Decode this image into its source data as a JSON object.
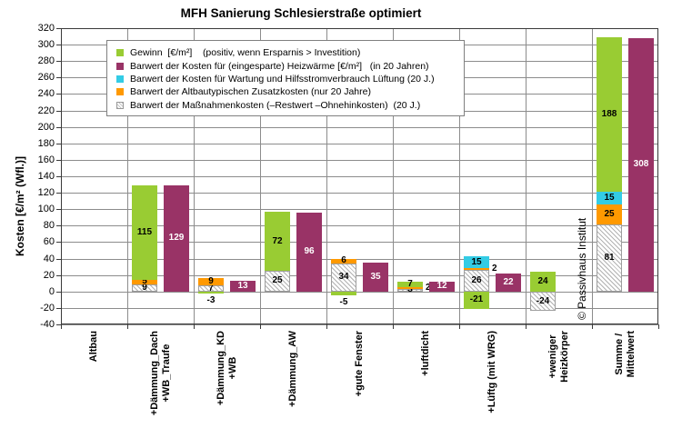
{
  "copyright": "© Passivhaus Institut",
  "colors": {
    "gewinn": "#99CC33",
    "heizwaerme": "#993366",
    "wartung": "#33CCE5",
    "zusatz": "#FF9900",
    "grid": "#8c8c8c",
    "axis": "#3a3a3a"
  },
  "legend": {
    "items": [
      {
        "key": "gewinn",
        "label": "Gewinn  [€/m²]    (positiv, wenn Ersparnis > Investition)"
      },
      {
        "key": "heizwaerme",
        "label": "Barwert der Kosten für (eingesparte) Heizwärme [€/m²]   (in 20 Jahren)"
      },
      {
        "key": "wartung",
        "label": "Barwert der Kosten für Wartung und Hilfsstromverbrauch Lüftung (20 J.)"
      },
      {
        "key": "zusatz",
        "label": "Barwert der Altbautypischen Zusatzkosten (nur 20 Jahre)"
      },
      {
        "key": "massnahmen",
        "label": "Barwert der Maßnahmenkosten (–Restwert –Ohnehinkosten)  (20 J.)"
      }
    ]
  },
  "chart_data": {
    "type": "bar",
    "title": "MFH Sanierung Schlesierstraße optimiert",
    "ylabel": "Kosten [€/m² (Wfl.)]",
    "ylim": [
      -40,
      320
    ],
    "ystep": 20,
    "grid": "on",
    "legend_position": "top-left inside plot",
    "categories": [
      "Altbau",
      "+Dämmung_Dach\n+WB_Traufe",
      "+Dämmung_KD\n+WB",
      "+Dämmung_AW",
      "+gute Fenster",
      "+luftdicht",
      "+Lüftg (mit WRG)",
      "+weniger\nHeizkörper",
      "Summe /\nMittelwert"
    ],
    "series": [
      {
        "name": "Gewinn [€/m²]",
        "key": "gewinn",
        "values": [
          null,
          115,
          -3,
          72,
          -5,
          7,
          -21,
          24,
          188
        ]
      },
      {
        "name": "Barwert der Kosten für (eingesparte) Heizwärme",
        "key": "heizwaerme",
        "values": [
          null,
          129,
          13,
          96,
          35,
          12,
          22,
          null,
          308
        ]
      },
      {
        "name": "Barwert Wartung und Hilfsstromverbrauch Lüftung",
        "key": "wartung",
        "values": [
          null,
          null,
          null,
          null,
          null,
          null,
          15,
          null,
          15
        ]
      },
      {
        "name": "Barwert der Altbautypischen Zusatzkosten",
        "key": "zusatz",
        "values": [
          null,
          5,
          9,
          null,
          6,
          2,
          2,
          null,
          25
        ]
      },
      {
        "name": "Barwert der Maßnahmenkosten",
        "key": "massnahmen",
        "values": [
          null,
          9,
          7,
          25,
          34,
          3,
          26,
          -24,
          81
        ]
      }
    ],
    "stacks": [
      {
        "segments": [],
        "heizwaerme": null
      },
      {
        "segments": [
          {
            "key": "massnahmen",
            "v": 9
          },
          {
            "key": "zusatz",
            "v": 5
          },
          {
            "key": "gewinn",
            "v": 115
          }
        ],
        "heizwaerme": 129
      },
      {
        "segments": [
          {
            "key": "massnahmen",
            "v": 7
          },
          {
            "key": "zusatz",
            "v": 9
          },
          {
            "key": "gewinn",
            "v": -3,
            "label_pos": "below"
          }
        ],
        "heizwaerme": 13
      },
      {
        "segments": [
          {
            "key": "massnahmen",
            "v": 25
          },
          {
            "key": "gewinn",
            "v": 72
          }
        ],
        "heizwaerme": 96
      },
      {
        "segments": [
          {
            "key": "massnahmen",
            "v": 34
          },
          {
            "key": "zusatz",
            "v": 6
          },
          {
            "key": "gewinn",
            "v": -5,
            "label_pos": "below"
          }
        ],
        "heizwaerme": 35
      },
      {
        "segments": [
          {
            "key": "massnahmen",
            "v": 3
          },
          {
            "key": "zusatz",
            "v": 2,
            "label_pos": "right"
          },
          {
            "key": "gewinn",
            "v": 7
          }
        ],
        "heizwaerme": 12
      },
      {
        "segments": [
          {
            "key": "massnahmen",
            "v": 26
          },
          {
            "key": "zusatz",
            "v": 2,
            "label_pos": "right"
          },
          {
            "key": "wartung",
            "v": 15
          },
          {
            "key": "gewinn",
            "v": -21
          }
        ],
        "heizwaerme": 22
      },
      {
        "segments": [
          {
            "key": "gewinn",
            "v": 24
          },
          {
            "key": "massnahmen",
            "v": -24
          }
        ],
        "heizwaerme": null
      },
      {
        "segments": [
          {
            "key": "massnahmen",
            "v": 81
          },
          {
            "key": "zusatz",
            "v": 25
          },
          {
            "key": "wartung",
            "v": 15
          },
          {
            "key": "gewinn",
            "v": 188
          }
        ],
        "heizwaerme": 308
      }
    ]
  }
}
